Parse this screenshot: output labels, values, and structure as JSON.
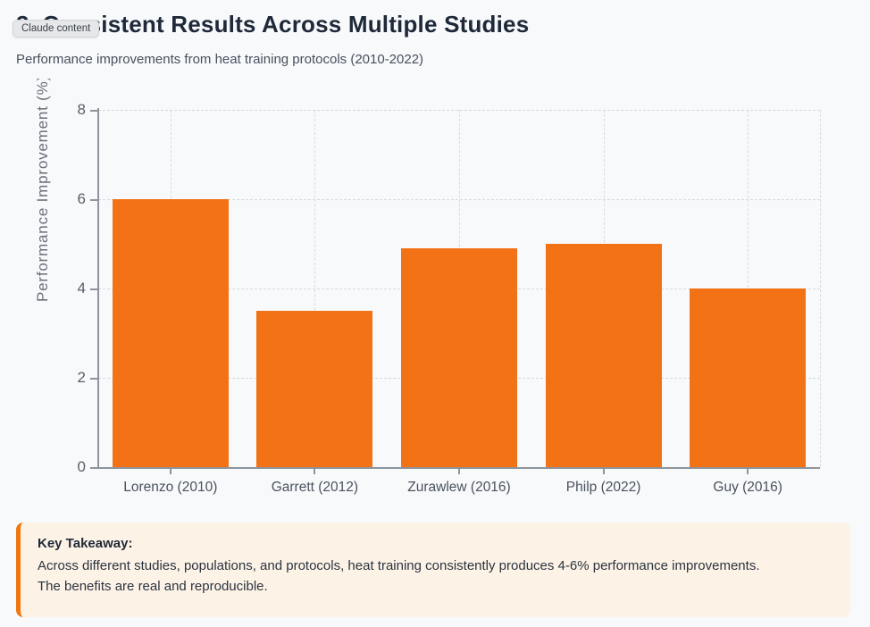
{
  "badge": {
    "label": "Claude content"
  },
  "header": {
    "title": "3. Consistent Results Across Multiple Studies",
    "subtitle": "Performance improvements from heat training protocols (2010-2022)"
  },
  "chart_data": {
    "type": "bar",
    "title": "",
    "categories": [
      "Lorenzo (2010)",
      "Garrett (2012)",
      "Zurawlew (2016)",
      "Philp (2022)",
      "Guy (2016)"
    ],
    "values": [
      6,
      3.5,
      4.9,
      5,
      4
    ],
    "xlabel": "",
    "ylabel": "Performance Improvement (%)",
    "ylim": [
      0,
      8
    ],
    "yticks": [
      0,
      2,
      4,
      6,
      8
    ],
    "grid": true,
    "grid_style": "dashed",
    "legend": "none",
    "bar_color": "#f47216"
  },
  "takeaway": {
    "title": "Key Takeaway:",
    "body": "Across different studies, populations, and protocols, heat training consistently produces 4-6% performance improvements. The benefits are real and reproducible."
  },
  "colors": {
    "accent": "#f47216",
    "page_background": "#f8f9fb",
    "takeaway_background": "#fdf2e6"
  }
}
